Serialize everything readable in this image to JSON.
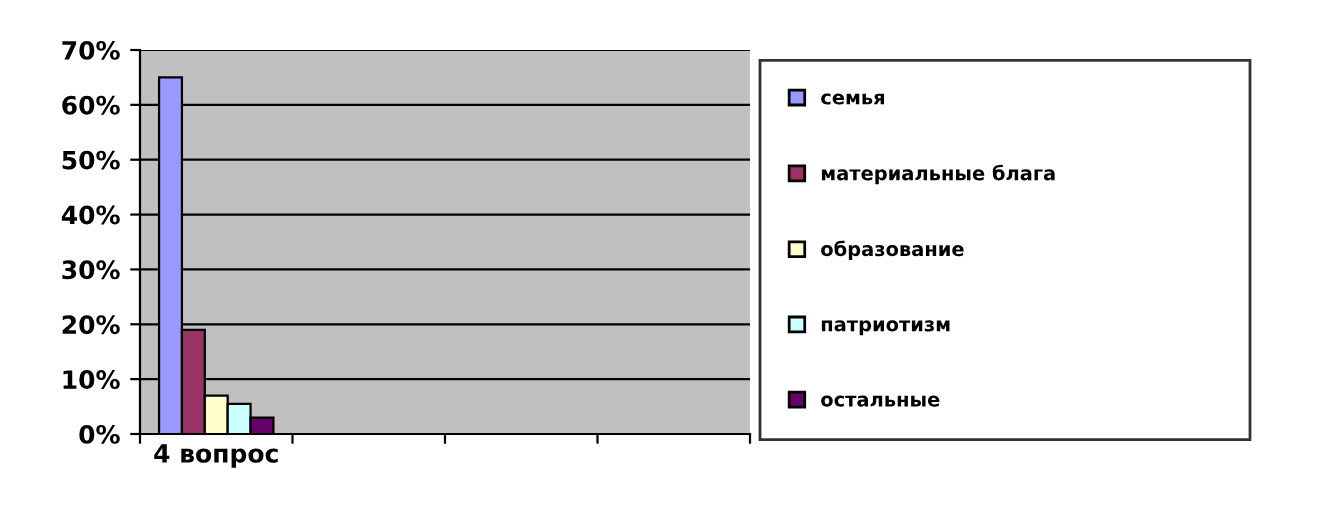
{
  "chart_data": {
    "type": "bar",
    "categories": [
      "4 вопрос",
      null,
      null,
      null
    ],
    "series": [
      {
        "name": "семья",
        "color": "#9999ff",
        "values": [
          65,
          null,
          null,
          null
        ]
      },
      {
        "name": "материальные блага",
        "color": "#993366",
        "values": [
          19,
          null,
          null,
          null
        ]
      },
      {
        "name": "образование",
        "color": "#ffffcc",
        "values": [
          7,
          null,
          null,
          null
        ]
      },
      {
        "name": "патриотизм",
        "color": "#ccffff",
        "values": [
          5.5,
          null,
          null,
          null
        ]
      },
      {
        "name": "остальные",
        "color": "#660066",
        "values": [
          3,
          null,
          null,
          null
        ]
      }
    ],
    "ylim": [
      0,
      70
    ],
    "yticks": [
      {
        "value": 0,
        "label": "0%"
      },
      {
        "value": 10,
        "label": "10%"
      },
      {
        "value": 20,
        "label": "20%"
      },
      {
        "value": 30,
        "label": "30%"
      },
      {
        "value": 40,
        "label": "40%"
      },
      {
        "value": 50,
        "label": "50%"
      },
      {
        "value": 60,
        "label": "60%"
      },
      {
        "value": 70,
        "label": "70%"
      }
    ],
    "grid": "y",
    "legend": "right"
  }
}
